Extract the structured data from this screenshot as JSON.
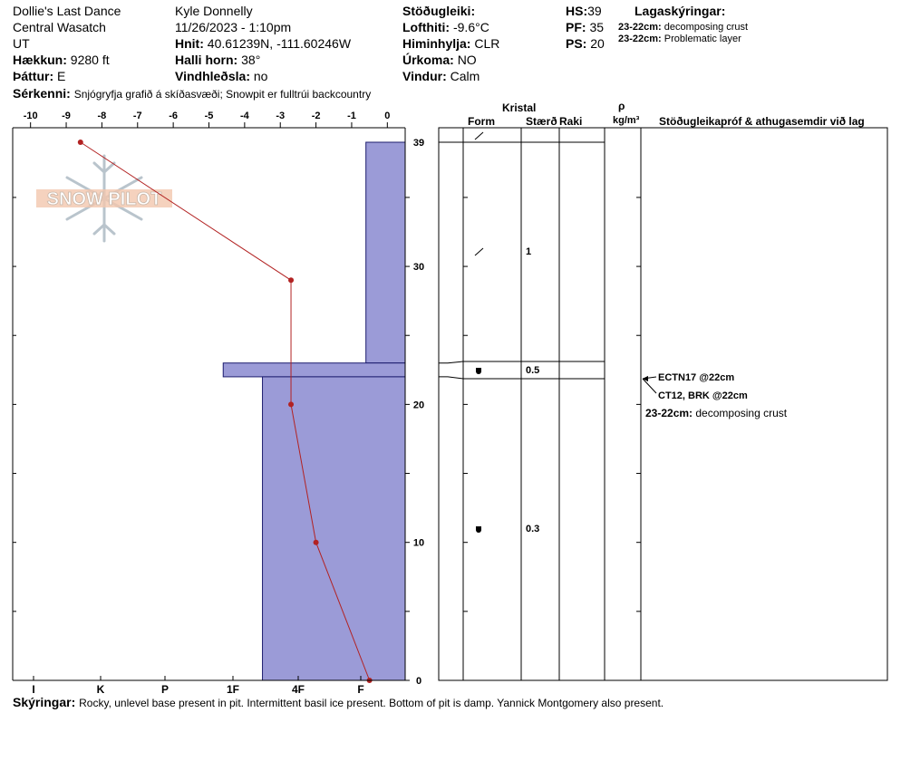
{
  "header": {
    "location_name": "Dollie's Last Dance",
    "range": "Central Wasatch",
    "state": "UT",
    "elevation_label": "Hækkun:",
    "elevation_value": "9280 ft",
    "aspect_label": "Þáttur:",
    "aspect_value": "E",
    "observer": "Kyle Donnelly",
    "datetime": "11/26/2023 - 1:10pm",
    "coords_label": "Hnit:",
    "coords_value": "40.61239N, -111.60246W",
    "slope_label": "Halli horn:",
    "slope_value": "38°",
    "wind_loading_label": "Vindhleðsla:",
    "wind_loading_value": "no",
    "stability_label": "Stöðugleiki:",
    "air_temp_label": "Lofthiti:",
    "air_temp_value": "-9.6°C",
    "sky_label": "Himinhylja:",
    "sky_value": "CLR",
    "precip_label": "Úrkoma:",
    "precip_value": "NO",
    "wind_label": "Vindur:",
    "wind_value": "Calm",
    "hs_label": "HS:",
    "hs_value": "39",
    "pf_label": "PF:",
    "pf_value": "35",
    "ps_label": "PS:",
    "ps_value": "20",
    "layer_notes_title": "Lagaskýringar:",
    "layer_notes": [
      {
        "range": "23-22cm:",
        "text": "decomposing crust"
      },
      {
        "range": "23-22cm:",
        "text": "Problematic layer"
      }
    ],
    "features_label": "Sérkenni:",
    "features_value": "Snjógryfja grafið á skíðasvæði; Snowpit er fulltrúi backcountry"
  },
  "watermark": {
    "text": "SNOW PILOT"
  },
  "table_header": {
    "crystal": "Kristal",
    "form": "Form",
    "size": "Stærð",
    "moisture": "Raki",
    "rho": "ρ",
    "density_unit": "kg/m³",
    "tests": "Stöðugleikapróf & athugasemdir við lag"
  },
  "layer_rows": [
    {
      "size": ""
    },
    {
      "size": "1"
    },
    {
      "size": "0.5"
    },
    {
      "size": "0.3"
    }
  ],
  "tests": [
    {
      "label": "ECTN17 @22cm"
    },
    {
      "label": "CT12, BRK @22cm"
    }
  ],
  "layer_comment": {
    "range": "23-22cm:",
    "text": "decomposing crust"
  },
  "footer": {
    "label": "Skýringar:",
    "text": "Rocky, unlevel base present in pit. Intermittent basil ice present. Bottom of pit is damp. Yannick Montgomery also present."
  },
  "colors": {
    "hardness_fill": "#9b9bd7",
    "temp_line": "#b22222"
  },
  "chart_data": {
    "type": "line",
    "temperature_axis": {
      "ticks": [
        -10,
        -9,
        -8,
        -7,
        -6,
        -5,
        -4,
        -3,
        -2,
        -1,
        0
      ],
      "tick_labels": [
        "-10",
        "-9",
        "-8",
        "-7",
        "-6",
        "-5",
        "-4",
        "-3",
        "-2",
        "-1",
        "0"
      ],
      "range": [
        -10.5,
        0.5
      ]
    },
    "hardness_axis": {
      "labels": [
        "I",
        "K",
        "P",
        "1F",
        "4F",
        "F"
      ]
    },
    "depth_axis": {
      "ticks": [
        0,
        10,
        20,
        30,
        39
      ],
      "tick_labels": [
        "0",
        "10",
        "20",
        "30",
        "39"
      ],
      "range": [
        0,
        40
      ]
    },
    "temperature_profile": [
      {
        "depth": 39,
        "temp": -8.6
      },
      {
        "depth": 29,
        "temp": -2.7
      },
      {
        "depth": 20,
        "temp": -2.7
      },
      {
        "depth": 10,
        "temp": -2.0
      },
      {
        "depth": 0,
        "temp": -0.5
      }
    ],
    "hardness_layers": [
      {
        "top": 39,
        "bottom": 23,
        "hand_hardness_temp": -0.6
      },
      {
        "top": 23,
        "bottom": 22,
        "hand_hardness_temp": -4.6
      },
      {
        "top": 22,
        "bottom": 0,
        "hand_hardness_temp": -3.5
      }
    ],
    "layer_boundaries_cm": [
      39,
      23,
      22,
      0
    ],
    "test_depths_cm": [
      22,
      22
    ]
  }
}
